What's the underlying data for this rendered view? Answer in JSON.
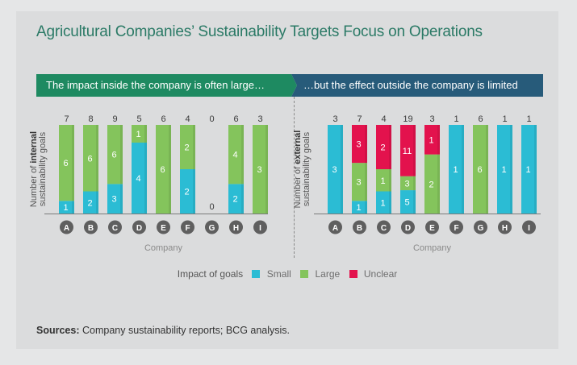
{
  "title": "Agricultural Companies’ Sustainability Targets Focus on Operations",
  "banner": {
    "left": "The impact inside the company is often large…",
    "right": "…but the effect outside the company is limited"
  },
  "colors": {
    "small": "#2bbcd4",
    "large": "#84c45c",
    "unclear": "#e3124d",
    "text": "#3b3b3b",
    "circle": "#5f5f5f"
  },
  "legend": {
    "title": "Impact of goals",
    "items": [
      {
        "key": "small",
        "label": "Small"
      },
      {
        "key": "large",
        "label": "Large"
      },
      {
        "key": "unclear",
        "label": "Unclear"
      }
    ]
  },
  "sources": {
    "label": "Sources:",
    "text": "Company sustainability reports; BCG analysis."
  },
  "chart_data": [
    {
      "type": "bar",
      "stacked": "100%",
      "ylabel_prefix": "Number of ",
      "ylabel_bold": "internal",
      "ylabel_line2": "sustainability goals",
      "xlabel": "Company",
      "categories": [
        "A",
        "B",
        "C",
        "D",
        "E",
        "F",
        "G",
        "H",
        "I"
      ],
      "totals": [
        7,
        8,
        9,
        5,
        6,
        4,
        0,
        6,
        3
      ],
      "series": [
        {
          "name": "Small",
          "key": "small",
          "values": [
            1,
            2,
            3,
            4,
            0,
            2,
            0,
            2,
            0
          ]
        },
        {
          "name": "Large",
          "key": "large",
          "values": [
            6,
            6,
            6,
            1,
            6,
            2,
            0,
            4,
            3
          ]
        },
        {
          "name": "Unclear",
          "key": "unclear",
          "values": [
            0,
            0,
            0,
            0,
            0,
            0,
            0,
            0,
            0
          ]
        }
      ]
    },
    {
      "type": "bar",
      "stacked": "100%",
      "ylabel_prefix": "Number of ",
      "ylabel_bold": "external",
      "ylabel_line2": "sustainability goals",
      "xlabel": "Company",
      "categories": [
        "A",
        "B",
        "C",
        "D",
        "E",
        "F",
        "G",
        "H",
        "I"
      ],
      "totals": [
        3,
        7,
        4,
        19,
        3,
        1,
        6,
        1,
        1
      ],
      "series": [
        {
          "name": "Small",
          "key": "small",
          "values": [
            3,
            1,
            1,
            5,
            0,
            1,
            0,
            1,
            1
          ]
        },
        {
          "name": "Large",
          "key": "large",
          "values": [
            0,
            3,
            1,
            3,
            2,
            0,
            6,
            0,
            0
          ]
        },
        {
          "name": "Unclear",
          "key": "unclear",
          "values": [
            0,
            3,
            2,
            11,
            1,
            0,
            0,
            0,
            0
          ]
        }
      ]
    }
  ]
}
